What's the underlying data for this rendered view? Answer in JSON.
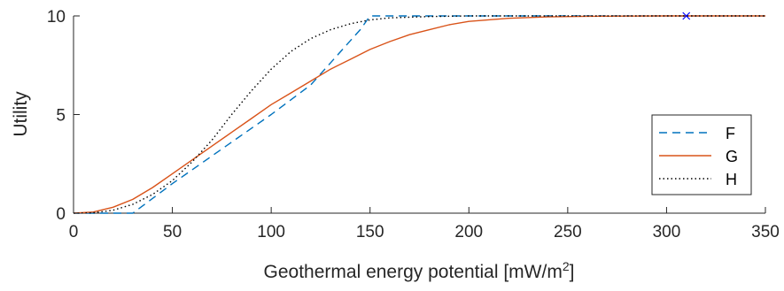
{
  "chart_data": {
    "type": "line",
    "xlabel": "Geothermal energy potential [mW/m",
    "xlabel_superscript": "2",
    "xlabel_suffix": "]",
    "ylabel": "Utility",
    "xlim": [
      0,
      350
    ],
    "ylim": [
      0,
      10
    ],
    "x_ticks": [
      0,
      50,
      100,
      150,
      200,
      250,
      300,
      350
    ],
    "y_ticks": [
      0,
      5,
      10
    ],
    "grid": false,
    "legend_position": "right-center",
    "series": [
      {
        "name": "F",
        "style": "dashed",
        "color": "#0072BD",
        "x": [
          0,
          30,
          50,
          80,
          100,
          120,
          145,
          150,
          200,
          250,
          300,
          350
        ],
        "y": [
          0,
          0,
          1.5,
          3.6,
          5.0,
          6.5,
          9.3,
          10,
          10,
          10,
          10,
          10
        ]
      },
      {
        "name": "G",
        "style": "solid",
        "color": "#D95319",
        "x": [
          0,
          10,
          20,
          30,
          40,
          50,
          60,
          70,
          80,
          90,
          100,
          110,
          120,
          130,
          140,
          150,
          160,
          170,
          180,
          190,
          200,
          220,
          240,
          260,
          280,
          300,
          320,
          350
        ],
        "y": [
          0,
          0.06,
          0.3,
          0.7,
          1.3,
          2.0,
          2.7,
          3.4,
          4.1,
          4.8,
          5.5,
          6.1,
          6.7,
          7.3,
          7.8,
          8.3,
          8.7,
          9.05,
          9.3,
          9.55,
          9.72,
          9.88,
          9.95,
          9.98,
          9.99,
          10,
          10,
          10
        ]
      },
      {
        "name": "H",
        "style": "dotted",
        "color": "#000000",
        "x": [
          0,
          10,
          20,
          30,
          40,
          50,
          60,
          70,
          80,
          90,
          100,
          110,
          120,
          130,
          140,
          150,
          160,
          180,
          200,
          250,
          300,
          350
        ],
        "y": [
          0,
          0.02,
          0.15,
          0.45,
          0.95,
          1.65,
          2.6,
          3.7,
          5.0,
          6.2,
          7.3,
          8.2,
          8.85,
          9.3,
          9.6,
          9.8,
          9.9,
          9.97,
          10,
          10,
          10,
          10
        ]
      }
    ],
    "markers": [
      {
        "x": 310,
        "y": 10,
        "symbol": "x",
        "color": "#0000FF"
      }
    ]
  }
}
